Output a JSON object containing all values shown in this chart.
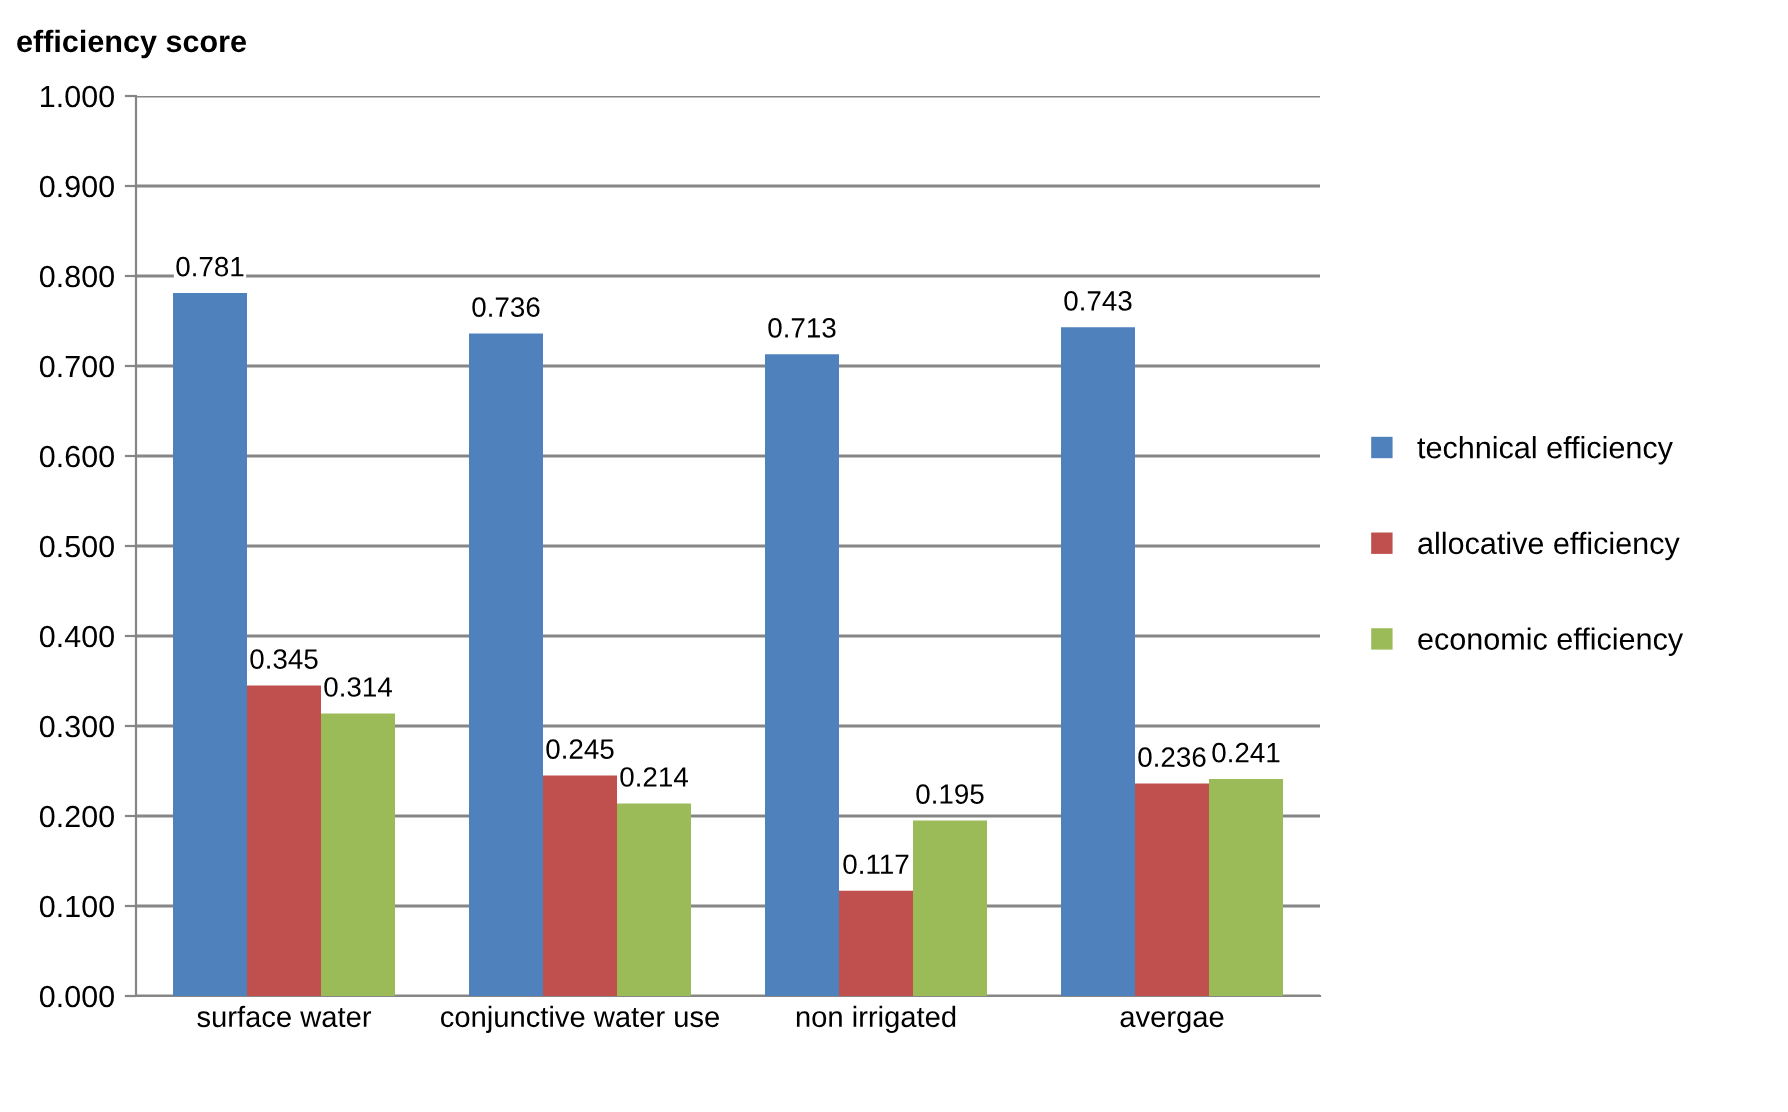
{
  "chart_data": {
    "type": "bar",
    "ylabel": "efficiency score",
    "categories": [
      "surface water",
      "conjunctive water use",
      "non irrigated",
      "avergae"
    ],
    "series": [
      {
        "name": "technical efficiency",
        "color": "#4f81bd",
        "values": [
          0.781,
          0.736,
          0.713,
          0.743
        ]
      },
      {
        "name": "allocative efficiency",
        "color": "#c0504d",
        "values": [
          0.345,
          0.245,
          0.117,
          0.236
        ]
      },
      {
        "name": "economic efficiency",
        "color": "#9bbb59",
        "values": [
          0.314,
          0.214,
          0.195,
          0.241
        ]
      }
    ],
    "ylim": [
      0,
      1
    ],
    "yticks": [
      {
        "value": 0,
        "label": "0.000"
      },
      {
        "value": 0.1,
        "label": "0.100"
      },
      {
        "value": 0.2,
        "label": "0.200"
      },
      {
        "value": 0.3,
        "label": "0.300"
      },
      {
        "value": 0.4,
        "label": "0.400"
      },
      {
        "value": 0.5,
        "label": "0.500"
      },
      {
        "value": 0.6,
        "label": "0.600"
      },
      {
        "value": 0.7,
        "label": "0.700"
      },
      {
        "value": 0.8,
        "label": "0.800"
      },
      {
        "value": 0.9,
        "label": "0.900"
      },
      {
        "value": 1,
        "label": "1.000"
      }
    ],
    "grid": "y",
    "legend": "right",
    "data_labels": true
  }
}
